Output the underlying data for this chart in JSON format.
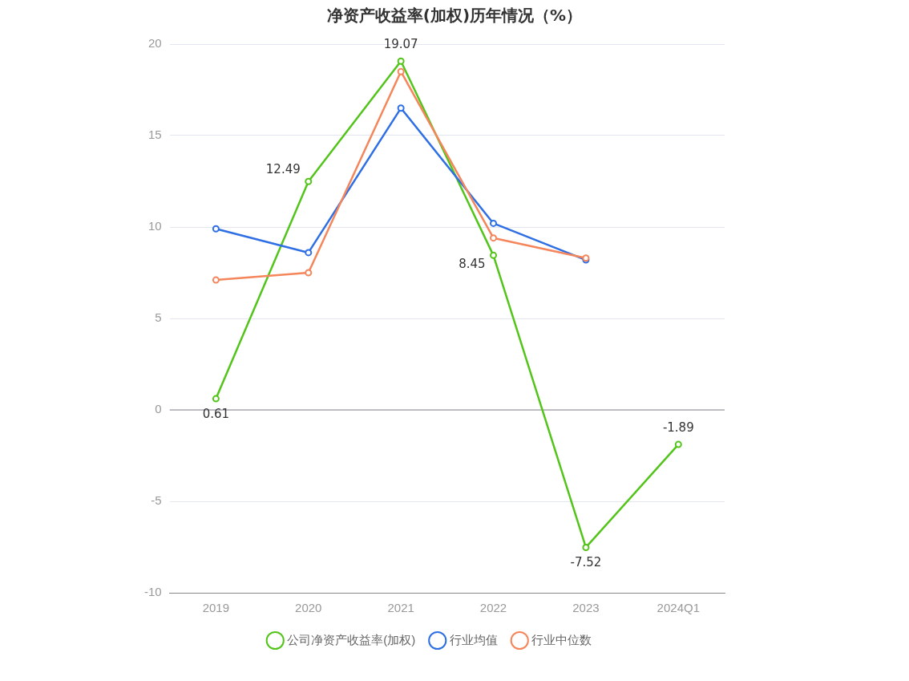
{
  "chart_data": {
    "type": "line",
    "title": "净资产收益率(加权)历年情况（%）",
    "categories": [
      "2019",
      "2020",
      "2021",
      "2022",
      "2023",
      "2024Q1"
    ],
    "series": [
      {
        "name": "公司净资产收益率(加权)",
        "color": "#52c41a",
        "values": [
          0.61,
          12.49,
          19.07,
          8.45,
          -7.52,
          -1.89
        ],
        "value_labels": [
          "0.61",
          "12.49",
          "19.07",
          "8.45",
          "-7.52",
          "-1.89"
        ]
      },
      {
        "name": "行业均值",
        "color": "#2f6fe4",
        "values": [
          9.9,
          8.6,
          16.5,
          10.2,
          8.2,
          null
        ]
      },
      {
        "name": "行业中位数",
        "color": "#f5855a",
        "values": [
          7.1,
          7.5,
          18.5,
          9.4,
          8.3,
          null
        ]
      }
    ],
    "ylim": [
      -10,
      20
    ],
    "yticks": [
      -10,
      -5,
      0,
      5,
      10,
      15,
      20
    ],
    "grid": "y",
    "legend": "bottom",
    "marker": "circle",
    "line_style": "solid"
  }
}
